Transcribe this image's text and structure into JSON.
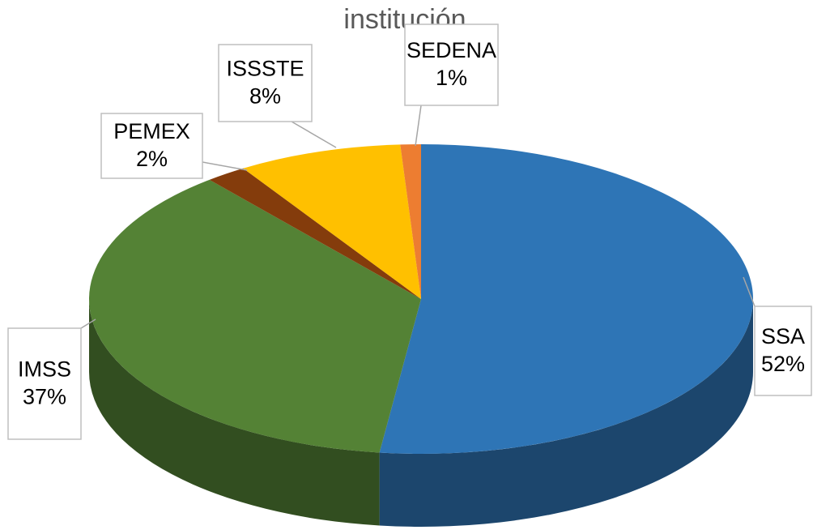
{
  "chart_data": {
    "type": "pie",
    "title": "institución",
    "categories": [
      "SSA",
      "IMSS",
      "PEMEX",
      "ISSSTE",
      "SEDENA"
    ],
    "values": [
      52,
      37,
      2,
      8,
      1
    ],
    "value_labels": [
      "52%",
      "37%",
      "2%",
      "8%",
      "1%"
    ],
    "colors": [
      "#2e75b6",
      "#548235",
      "#843c0c",
      "#ffc000",
      "#ed7d31"
    ]
  }
}
